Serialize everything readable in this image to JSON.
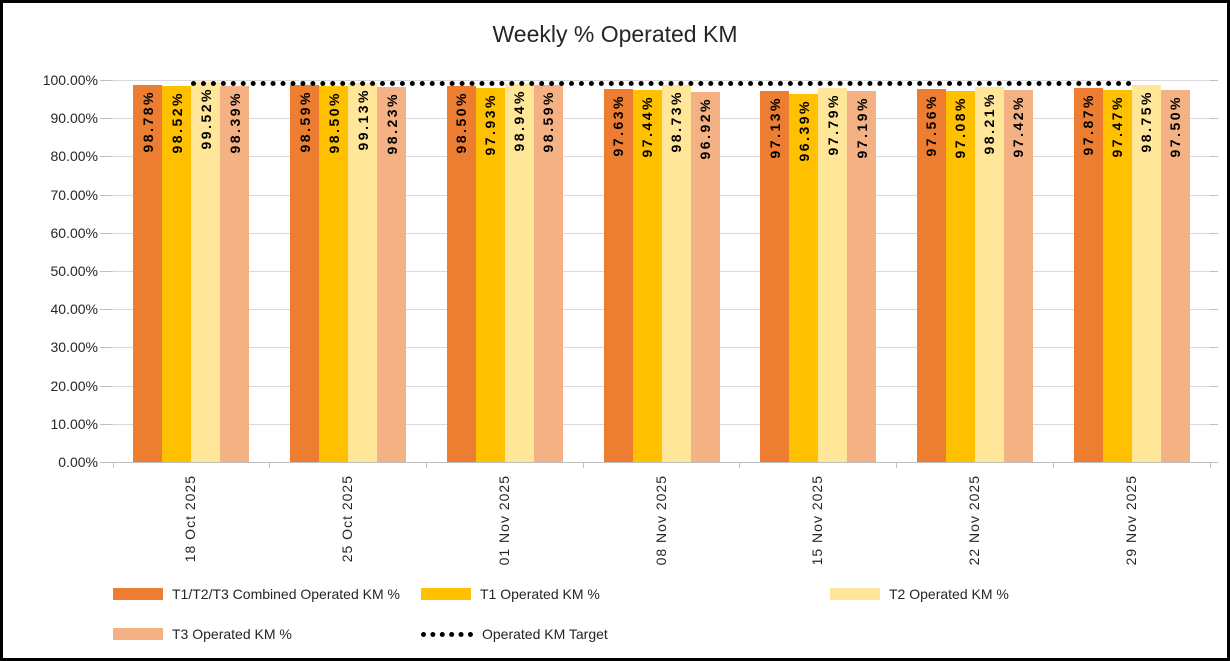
{
  "chart_data": {
    "type": "bar",
    "title": "Weekly % Operated KM",
    "categories": [
      "18 Oct 2025",
      "25 Oct 2025",
      "01 Nov 2025",
      "08 Nov 2025",
      "15 Nov 2025",
      "22 Nov 2025",
      "29 Nov 2025"
    ],
    "series": [
      {
        "name": "T1/T2/T3 Combined Operated KM %",
        "color": "#ED7D31",
        "values": [
          98.78,
          98.59,
          98.5,
          97.63,
          97.13,
          97.56,
          97.87
        ]
      },
      {
        "name": "T1 Operated KM %",
        "color": "#FFC000",
        "values": [
          98.52,
          98.5,
          97.93,
          97.44,
          96.39,
          97.08,
          97.47
        ]
      },
      {
        "name": "T2 Operated KM %",
        "color": "#FFE699",
        "values": [
          99.52,
          99.13,
          98.94,
          98.73,
          97.79,
          98.21,
          98.75
        ]
      },
      {
        "name": "T3 Operated KM %",
        "color": "#F4B183",
        "values": [
          98.39,
          98.23,
          98.59,
          96.92,
          97.19,
          97.42,
          97.5
        ]
      }
    ],
    "target_line": {
      "name": "Operated KM Target",
      "value": 99.0,
      "color": "#000000",
      "style": "dotted"
    },
    "y_axis": {
      "min": 0,
      "max": 100,
      "step": 10,
      "tick_labels": [
        "0.00%",
        "10.00%",
        "20.00%",
        "30.00%",
        "40.00%",
        "50.00%",
        "60.00%",
        "70.00%",
        "80.00%",
        "90.00%",
        "100.00%"
      ]
    },
    "data_labels": {
      "format": "0.00%",
      "rotation": "vertical",
      "position": "inside-end"
    },
    "legend": {
      "position": "bottom",
      "entries": [
        "T1/T2/T3 Combined Operated KM %",
        "T1 Operated KM %",
        "T2 Operated KM %",
        "T3 Operated KM %",
        "Operated KM Target"
      ]
    },
    "grid": true
  }
}
